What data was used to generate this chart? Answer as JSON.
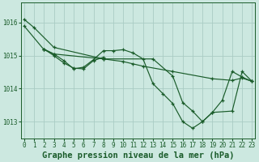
{
  "background_color": "#cce8e0",
  "grid_color": "#aaccc4",
  "line_color": "#1a5c2a",
  "title": "Graphe pression niveau de la mer (hPa)",
  "xlim": [
    -0.3,
    23.3
  ],
  "ylim": [
    1012.5,
    1016.6
  ],
  "yticks": [
    1013,
    1014,
    1015,
    1016
  ],
  "xticks": [
    0,
    1,
    2,
    3,
    4,
    5,
    6,
    7,
    8,
    9,
    10,
    11,
    12,
    13,
    14,
    15,
    16,
    17,
    18,
    19,
    20,
    21,
    22,
    23
  ],
  "title_fontsize": 7.5,
  "tick_fontsize": 5.5,
  "lines": [
    {
      "x": [
        0,
        1,
        3,
        8,
        10,
        11,
        12,
        15,
        19,
        21,
        22,
        23
      ],
      "y": [
        1016.1,
        1015.85,
        1015.25,
        1014.9,
        1014.82,
        1014.75,
        1014.68,
        1014.52,
        1014.3,
        1014.25,
        1014.32,
        1014.22
      ]
    },
    {
      "x": [
        2,
        3,
        4,
        5,
        6,
        7,
        8,
        9,
        10,
        11,
        12,
        13,
        14,
        15,
        16,
        17,
        18,
        19,
        20,
        21,
        22,
        23
      ],
      "y": [
        1015.2,
        1015.05,
        1014.85,
        1014.6,
        1014.65,
        1014.88,
        1015.15,
        1015.15,
        1015.18,
        1015.08,
        1014.9,
        1014.15,
        1013.85,
        1013.55,
        1013.0,
        1012.8,
        1013.0,
        1013.28,
        1013.65,
        1014.52,
        1014.35,
        1014.22
      ]
    },
    {
      "x": [
        2,
        3,
        4,
        5,
        6,
        7,
        8
      ],
      "y": [
        1015.2,
        1015.0,
        1014.78,
        1014.62,
        1014.6,
        1014.85,
        1014.95
      ]
    },
    {
      "x": [
        0,
        2,
        3,
        8,
        13,
        15,
        16,
        17,
        18,
        19,
        21,
        22,
        23
      ],
      "y": [
        1015.9,
        1015.18,
        1015.05,
        1014.9,
        1014.9,
        1014.38,
        1013.58,
        1013.32,
        1013.0,
        1013.28,
        1013.32,
        1014.52,
        1014.22
      ]
    }
  ]
}
